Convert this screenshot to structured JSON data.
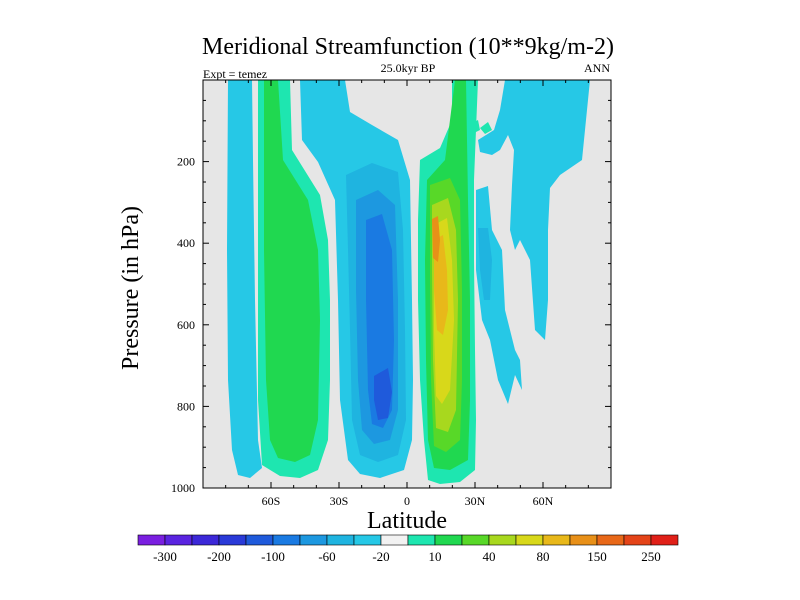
{
  "chart_data": {
    "type": "contour",
    "title": "Meridional Streamfunction (10**9kg/m-2)",
    "subtitle": "25.0kyr BP",
    "left_label": "Expt = temez",
    "right_label": "ANN",
    "xlabel": "Latitude",
    "ylabel": "Pressure (in hPa)",
    "x_axis": {
      "range": [
        -90,
        90
      ],
      "ticks": [
        {
          "value": -60,
          "label": "60S"
        },
        {
          "value": -30,
          "label": "30S"
        },
        {
          "value": 0,
          "label": "0"
        },
        {
          "value": 30,
          "label": "30N"
        },
        {
          "value": 60,
          "label": "60N"
        }
      ]
    },
    "y_axis": {
      "range": [
        1000,
        0
      ],
      "ticks": [
        {
          "value": 200,
          "label": "200"
        },
        {
          "value": 400,
          "label": "400"
        },
        {
          "value": 600,
          "label": "600"
        },
        {
          "value": 800,
          "label": "800"
        },
        {
          "value": 1000,
          "label": "1000"
        }
      ]
    },
    "background_color": "#e6e6e6",
    "colorbar": {
      "colors": [
        "#7a1fe0",
        "#5a24e0",
        "#3c28d8",
        "#2a3ad8",
        "#1f5adb",
        "#1a7ae2",
        "#1d98e0",
        "#1fb4e0",
        "#26c8e6",
        "#f2f2f2",
        "#1ee6b0",
        "#20d850",
        "#58d828",
        "#a8d81e",
        "#d8d81a",
        "#e8b81a",
        "#e89018",
        "#e86818",
        "#e44418",
        "#e02018"
      ],
      "labels": [
        "-300",
        "-200",
        "-100",
        "-60",
        "-20",
        "10",
        "40",
        "80",
        "150",
        "250"
      ]
    },
    "features": [
      {
        "name": "sh-cell-60s",
        "sign": "negative",
        "min_value": -20,
        "lat_range": [
          -80,
          -68
        ],
        "p_range": [
          1000,
          0
        ]
      },
      {
        "name": "sh-positive-band",
        "sign": "positive",
        "max_value": 40,
        "lat_range": [
          -70,
          -35
        ],
        "p_range": [
          975,
          0
        ]
      },
      {
        "name": "southern-hadley-cell",
        "sign": "negative",
        "min_value": -100,
        "lat_range": [
          -35,
          5
        ],
        "p_range": [
          975,
          100
        ]
      },
      {
        "name": "northern-hadley-cell",
        "sign": "positive",
        "max_value": 150,
        "lat_range": [
          5,
          30
        ],
        "p_range": [
          985,
          0
        ]
      },
      {
        "name": "nh-ferrel-cell",
        "sign": "negative",
        "min_value": -60,
        "lat_range": [
          30,
          50
        ],
        "p_range": [
          780,
          80
        ]
      },
      {
        "name": "nh-polar-band",
        "sign": "negative",
        "min_value": -20,
        "lat_range": [
          30,
          80
        ],
        "p_range": [
          500,
          0
        ]
      }
    ]
  }
}
